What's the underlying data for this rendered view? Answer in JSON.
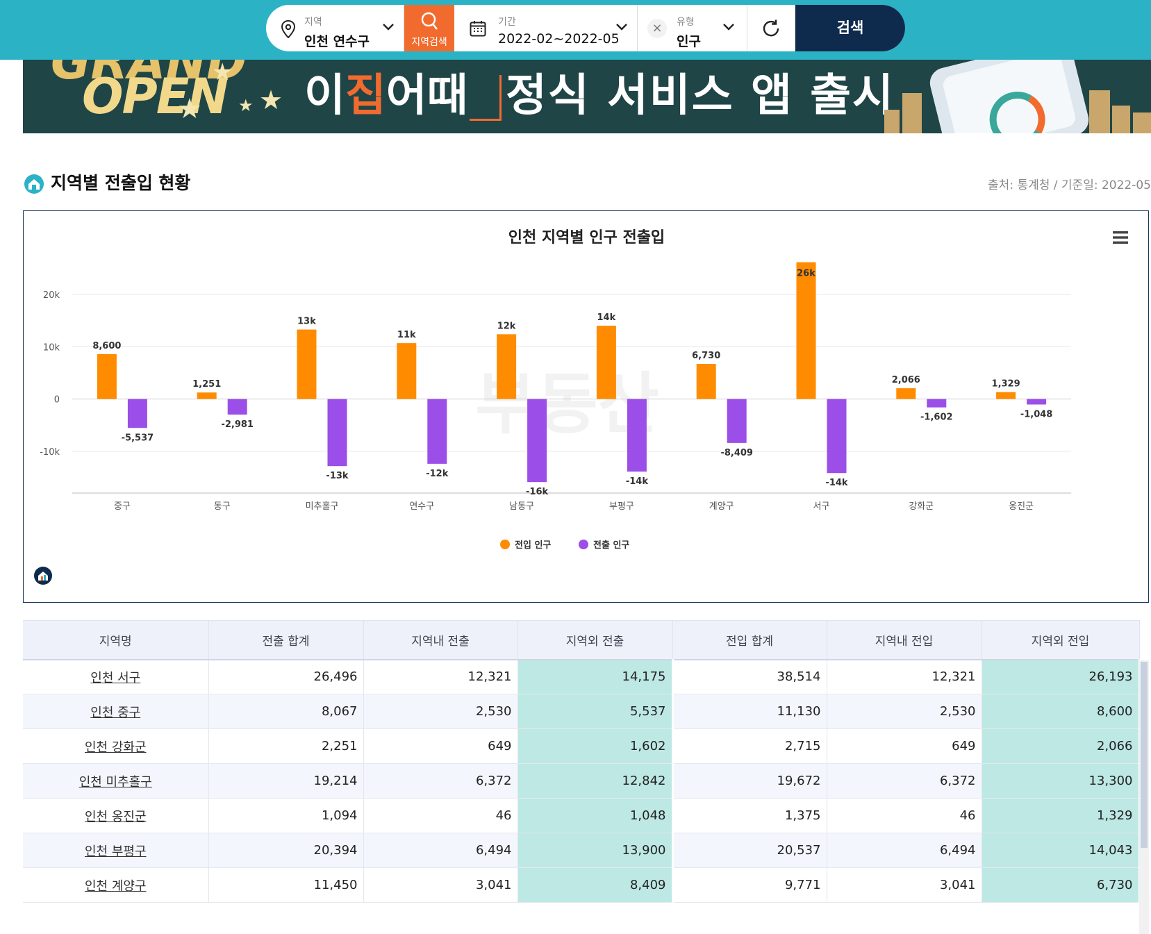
{
  "search": {
    "region_label": "지역",
    "region_value": "인천 연수구",
    "region_button": "지역검색",
    "period_label": "기간",
    "period_value": "2022-02~2022-05",
    "type_label": "유형",
    "type_value": "인구",
    "submit": "검색"
  },
  "banner": {
    "open_text": "OPEN",
    "brand_prefix": "이",
    "brand_accent": "집",
    "brand_suffix": "어때",
    "tagline": "정식 서비스 앱 출시"
  },
  "section": {
    "title": "지역별 전출입 현황",
    "source": "출처: 통계청 / 기준일: 2022-05"
  },
  "colors": {
    "inflow": "#ff8c00",
    "outflow": "#9b4fe8",
    "accent": "#2bb3c5",
    "navy": "#0e2a4c",
    "highlight": "#bde8e3"
  },
  "chart_data": {
    "type": "bar",
    "title": "인천 지역별 인구 전출입",
    "categories": [
      "중구",
      "동구",
      "미추홀구",
      "연수구",
      "남동구",
      "부평구",
      "계양구",
      "서구",
      "강화군",
      "옹진군"
    ],
    "series": [
      {
        "name": "전입 인구",
        "values": [
          8600,
          1251,
          13300,
          10700,
          12400,
          14043,
          6730,
          26193,
          2066,
          1329
        ],
        "labels": [
          "8,600",
          "1,251",
          "13k",
          "11k",
          "12k",
          "14k",
          "6,730",
          "26k",
          "2,066",
          "1,329"
        ]
      },
      {
        "name": "전출 인구",
        "values": [
          -5537,
          -2981,
          -12842,
          -12400,
          -15900,
          -13900,
          -8409,
          -14175,
          -1602,
          -1048
        ],
        "labels": [
          "-5,537",
          "-2,981",
          "-13k",
          "-12k",
          "-16k",
          "-14k",
          "-8,409",
          "-14k",
          "-1,602",
          "-1,048"
        ]
      }
    ],
    "y_ticks": [
      20000,
      10000,
      0,
      -10000
    ],
    "y_tick_labels": [
      "20k",
      "10k",
      "0",
      "-10k"
    ],
    "ylim": [
      -18000,
      28000
    ],
    "grid": true,
    "legend_position": "bottom-center"
  },
  "table": {
    "headers": [
      "지역명",
      "전출 합계",
      "지역내 전출",
      "지역외 전출",
      "전입 합계",
      "지역내 전입",
      "지역외 전입"
    ],
    "rows": [
      [
        "인천 서구",
        "26,496",
        "12,321",
        "14,175",
        "38,514",
        "12,321",
        "26,193"
      ],
      [
        "인천 중구",
        "8,067",
        "2,530",
        "5,537",
        "11,130",
        "2,530",
        "8,600"
      ],
      [
        "인천 강화군",
        "2,251",
        "649",
        "1,602",
        "2,715",
        "649",
        "2,066"
      ],
      [
        "인천 미추홀구",
        "19,214",
        "6,372",
        "12,842",
        "19,672",
        "6,372",
        "13,300"
      ],
      [
        "인천 옹진군",
        "1,094",
        "46",
        "1,048",
        "1,375",
        "46",
        "1,329"
      ],
      [
        "인천 부평구",
        "20,394",
        "6,494",
        "13,900",
        "20,537",
        "6,494",
        "14,043"
      ],
      [
        "인천 계양구",
        "11,450",
        "3,041",
        "8,409",
        "9,771",
        "3,041",
        "6,730"
      ]
    ]
  }
}
